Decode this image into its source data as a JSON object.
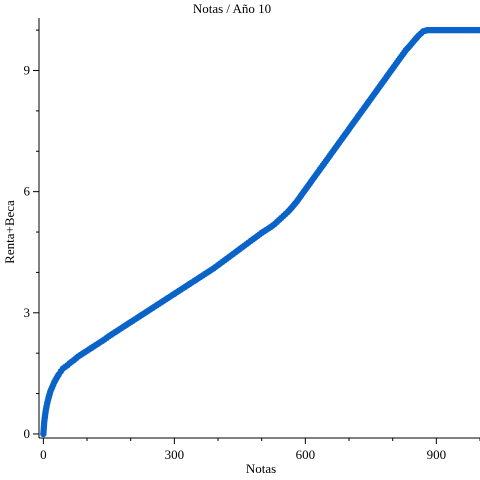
{
  "chart_data": {
    "type": "scatter",
    "title": "Notas / Año 10",
    "xlabel": "Notas",
    "ylabel": "Renta+Beca",
    "xlim": [
      -10,
      1000
    ],
    "ylim": [
      -0.1,
      10.3
    ],
    "x_major_ticks": [
      {
        "value": 0,
        "label": "0"
      },
      {
        "value": 300,
        "label": "300"
      },
      {
        "value": 600,
        "label": "600"
      },
      {
        "value": 900,
        "label": "900"
      }
    ],
    "x_minor_ticks": [
      100,
      200,
      400,
      500,
      700,
      800,
      1000
    ],
    "y_major_ticks": [
      {
        "value": 0,
        "label": "0"
      },
      {
        "value": 3,
        "label": "3"
      },
      {
        "value": 6,
        "label": "6"
      },
      {
        "value": 9,
        "label": "9"
      }
    ],
    "y_minor_ticks": [
      1,
      2,
      4,
      5,
      7,
      8,
      10
    ],
    "grid": false,
    "marker_color": "#0a63c9",
    "series": [
      {
        "name": "",
        "x": [
          0,
          2,
          5,
          8,
          12,
          16,
          20,
          25,
          30,
          35,
          40,
          45,
          50,
          55,
          60,
          70,
          80,
          90,
          100,
          110,
          120,
          130,
          140,
          150,
          160,
          170,
          180,
          190,
          200,
          210,
          220,
          230,
          240,
          250,
          260,
          270,
          280,
          290,
          300,
          310,
          320,
          330,
          340,
          350,
          360,
          370,
          380,
          390,
          400,
          410,
          420,
          430,
          440,
          450,
          460,
          470,
          480,
          490,
          500,
          510,
          520,
          530,
          540,
          550,
          560,
          570,
          580,
          590,
          600,
          610,
          620,
          630,
          640,
          650,
          660,
          670,
          680,
          690,
          700,
          710,
          720,
          730,
          740,
          750,
          760,
          770,
          780,
          790,
          800,
          810,
          820,
          830,
          840,
          850,
          860,
          870,
          880,
          885,
          890,
          900,
          920,
          940,
          960,
          980,
          1000
        ],
        "y": [
          0.0,
          0.3,
          0.55,
          0.72,
          0.9,
          1.05,
          1.15,
          1.28,
          1.38,
          1.47,
          1.55,
          1.62,
          1.66,
          1.7,
          1.75,
          1.83,
          1.92,
          1.99,
          2.06,
          2.13,
          2.2,
          2.27,
          2.34,
          2.42,
          2.49,
          2.56,
          2.63,
          2.7,
          2.77,
          2.84,
          2.91,
          2.98,
          3.05,
          3.12,
          3.19,
          3.26,
          3.33,
          3.4,
          3.47,
          3.54,
          3.61,
          3.68,
          3.75,
          3.82,
          3.89,
          3.96,
          4.03,
          4.1,
          4.18,
          4.26,
          4.34,
          4.42,
          4.5,
          4.58,
          4.66,
          4.74,
          4.82,
          4.9,
          4.98,
          5.05,
          5.12,
          5.2,
          5.3,
          5.4,
          5.5,
          5.62,
          5.75,
          5.9,
          6.05,
          6.2,
          6.35,
          6.5,
          6.65,
          6.8,
          6.95,
          7.1,
          7.25,
          7.4,
          7.55,
          7.7,
          7.85,
          8.0,
          8.15,
          8.3,
          8.45,
          8.6,
          8.75,
          8.9,
          9.05,
          9.2,
          9.35,
          9.5,
          9.62,
          9.75,
          9.87,
          9.97,
          10.0,
          10.0,
          10.0,
          10.0,
          10.0,
          10.0,
          10.0,
          10.0,
          10.0
        ]
      }
    ]
  }
}
